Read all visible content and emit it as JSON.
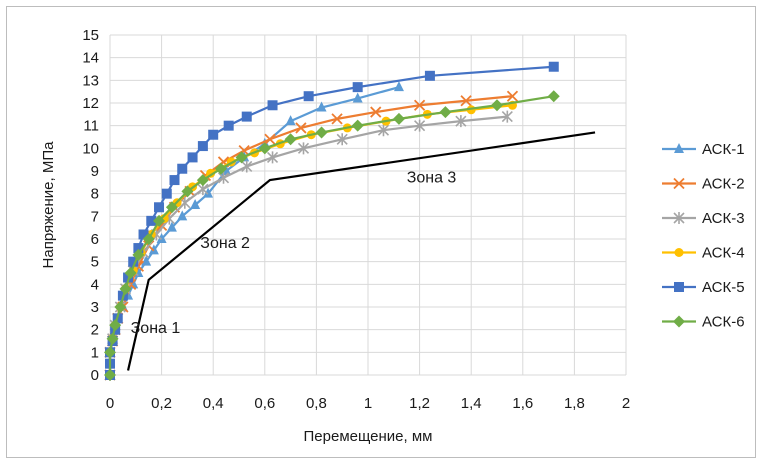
{
  "chart_data": {
    "type": "line",
    "xlabel": "Перемещение, мм",
    "ylabel": "Напряжение, МПа",
    "xlim": [
      0,
      2
    ],
    "ylim": [
      0,
      15
    ],
    "xticks": [
      "0",
      "0,2",
      "0,4",
      "0,6",
      "0,8",
      "1",
      "1,2",
      "1,4",
      "1,6",
      "1,8",
      "2"
    ],
    "yticks": [
      "0",
      "1",
      "2",
      "3",
      "4",
      "5",
      "6",
      "7",
      "8",
      "9",
      "10",
      "11",
      "12",
      "13",
      "14",
      "15"
    ],
    "grid": true,
    "legend_position": "right",
    "series": [
      {
        "name": "АСК-1",
        "color": "#5B9BD5",
        "marker": "triangle",
        "x": [
          0,
          0,
          0,
          0.01,
          0.02,
          0.03,
          0.05,
          0.07,
          0.09,
          0.11,
          0.14,
          0.17,
          0.2,
          0.24,
          0.28,
          0.33,
          0.38,
          0.45,
          0.52,
          0.6,
          0.7,
          0.82,
          0.96,
          1.12
        ],
        "y": [
          0,
          0.5,
          1,
          1.5,
          2,
          2.5,
          3,
          3.5,
          4,
          4.5,
          5,
          5.5,
          6,
          6.5,
          7,
          7.5,
          8,
          9,
          9.6,
          10.2,
          11.2,
          11.8,
          12.2,
          12.7
        ]
      },
      {
        "name": "АСК-2",
        "color": "#ED7D31",
        "marker": "x",
        "x": [
          0,
          0,
          0.01,
          0.02,
          0.03,
          0.05,
          0.08,
          0.11,
          0.15,
          0.2,
          0.25,
          0.31,
          0.37,
          0.44,
          0.52,
          0.62,
          0.74,
          0.88,
          1.03,
          1.2,
          1.38,
          1.56
        ],
        "y": [
          0,
          1,
          1.5,
          2,
          2.5,
          3,
          4,
          4.8,
          5.7,
          6.6,
          7.4,
          8.1,
          8.8,
          9.4,
          9.9,
          10.4,
          10.9,
          11.3,
          11.6,
          11.9,
          12.1,
          12.3
        ]
      },
      {
        "name": "АСК-3",
        "color": "#A5A5A5",
        "marker": "star",
        "x": [
          0,
          0,
          0.01,
          0.02,
          0.04,
          0.06,
          0.09,
          0.13,
          0.18,
          0.23,
          0.29,
          0.36,
          0.44,
          0.53,
          0.63,
          0.75,
          0.9,
          1.06,
          1.2,
          1.36,
          1.54
        ],
        "y": [
          0,
          1,
          1.6,
          2.2,
          3,
          3.8,
          4.6,
          5.4,
          6.2,
          6.9,
          7.6,
          8.2,
          8.7,
          9.2,
          9.6,
          10,
          10.4,
          10.8,
          11,
          11.2,
          11.4
        ]
      },
      {
        "name": "АСК-4",
        "color": "#FFC000",
        "marker": "circle",
        "x": [
          0,
          0,
          0.01,
          0.02,
          0.04,
          0.06,
          0.09,
          0.12,
          0.16,
          0.21,
          0.26,
          0.32,
          0.39,
          0.47,
          0.56,
          0.66,
          0.78,
          0.92,
          1.07,
          1.23,
          1.4,
          1.56
        ],
        "y": [
          0,
          1,
          1.6,
          2.2,
          3,
          3.8,
          4.6,
          5.4,
          6.2,
          6.9,
          7.6,
          8.3,
          8.9,
          9.4,
          9.8,
          10.2,
          10.6,
          10.9,
          11.2,
          11.5,
          11.7,
          11.9
        ]
      },
      {
        "name": "АСК-5",
        "color": "#4472C4",
        "marker": "square",
        "x": [
          0,
          0,
          0,
          0.01,
          0.02,
          0.03,
          0.05,
          0.07,
          0.09,
          0.11,
          0.13,
          0.16,
          0.19,
          0.22,
          0.25,
          0.28,
          0.32,
          0.36,
          0.4,
          0.46,
          0.53,
          0.63,
          0.77,
          0.96,
          1.24,
          1.72
        ],
        "y": [
          0,
          0.5,
          1,
          1.5,
          2,
          2.5,
          3.5,
          4.3,
          5,
          5.6,
          6.2,
          6.8,
          7.4,
          8,
          8.6,
          9.1,
          9.6,
          10.1,
          10.6,
          11,
          11.4,
          11.9,
          12.3,
          12.7,
          13.2,
          13.6
        ]
      },
      {
        "name": "АСК-6",
        "color": "#70AD47",
        "marker": "diamond",
        "x": [
          0,
          0,
          0.01,
          0.02,
          0.04,
          0.06,
          0.08,
          0.11,
          0.15,
          0.19,
          0.24,
          0.3,
          0.36,
          0.43,
          0.51,
          0.6,
          0.7,
          0.82,
          0.96,
          1.12,
          1.3,
          1.5,
          1.72
        ],
        "y": [
          0,
          1,
          1.6,
          2.2,
          3,
          3.8,
          4.5,
          5.3,
          6,
          6.8,
          7.4,
          8.1,
          8.6,
          9.1,
          9.6,
          10,
          10.4,
          10.7,
          11,
          11.3,
          11.6,
          11.9,
          12.3
        ]
      }
    ],
    "zone_line": {
      "color": "#000000",
      "x": [
        0.07,
        0.15,
        0.62,
        1.88
      ],
      "y": [
        0.2,
        4.2,
        8.6,
        10.7
      ]
    },
    "annotations": [
      {
        "text": "Зона 1",
        "x": 0.08,
        "y": 1.85
      },
      {
        "text": "Зона 2",
        "x": 0.35,
        "y": 5.6
      },
      {
        "text": "Зона 3",
        "x": 1.15,
        "y": 8.5
      }
    ]
  }
}
